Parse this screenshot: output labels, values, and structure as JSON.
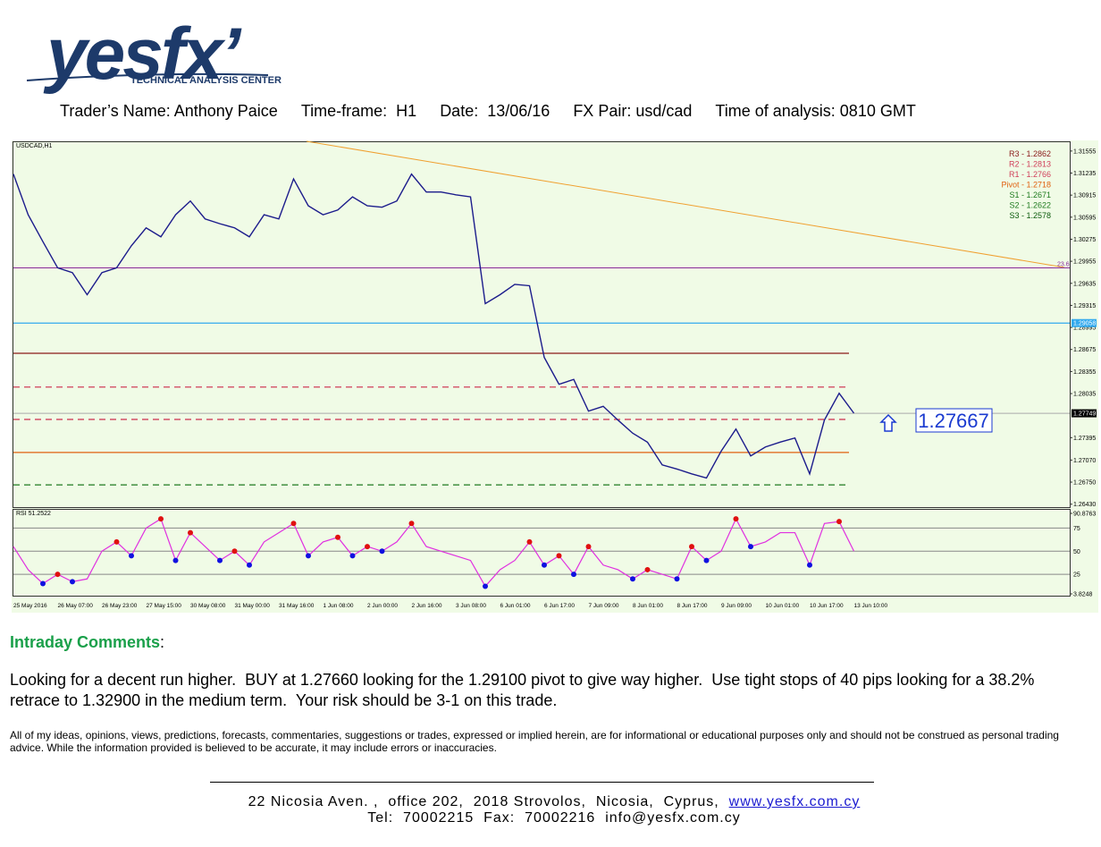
{
  "header": {
    "logo": "yesfx’",
    "tagline": "TECHNICAL ANALYSIS CENTER",
    "fields": [
      [
        "Trader’s Name:",
        "Anthony Paice"
      ],
      [
        "Time-frame:",
        "H1"
      ],
      [
        "Date:",
        "13/06/16"
      ],
      [
        "FX Pair:",
        "usd/cad"
      ],
      [
        "Time of analysis:",
        "0810 GMT"
      ]
    ]
  },
  "chart_data": {
    "type": "line",
    "title": "USDCAD,H1",
    "categories": [
      "25 May 2016",
      null,
      null,
      "26 May 07:00",
      null,
      null,
      "26 May 23:00",
      null,
      null,
      "27 May 15:00",
      null,
      null,
      "30 May 08:00",
      null,
      null,
      "31 May 00:00",
      null,
      null,
      "31 May 16:00",
      null,
      null,
      "1 Jun 08:00",
      null,
      null,
      "2 Jun 00:00",
      null,
      null,
      "2 Jun 16:00",
      null,
      null,
      "3 Jun 08:00",
      null,
      null,
      "6 Jun 01:00",
      null,
      null,
      "6 Jun 17:00",
      null,
      null,
      "7 Jun 09:00",
      null,
      null,
      "8 Jun 01:00",
      null,
      null,
      "8 Jun 17:00",
      null,
      null,
      "9 Jun 09:00",
      null,
      null,
      "10 Jun 01:00",
      null,
      null,
      "10 Jun 17:00",
      null,
      null,
      "13 Jun 10:00"
    ],
    "values": [
      1.3122,
      1.3063,
      1.3024,
      1.2986,
      1.2979,
      1.2947,
      1.2979,
      1.2986,
      1.3018,
      1.3044,
      1.3031,
      1.3063,
      1.3083,
      1.3057,
      1.305,
      1.3044,
      1.3031,
      1.3063,
      1.3057,
      1.3115,
      1.3076,
      1.3063,
      1.307,
      1.3089,
      1.3076,
      1.3074,
      1.3083,
      1.3122,
      1.3096,
      1.3096,
      1.3092,
      1.3089,
      1.2934,
      1.2947,
      1.2962,
      1.296,
      1.2856,
      1.2817,
      1.2824,
      1.2778,
      1.2785,
      1.2765,
      1.2746,
      1.2733,
      1.27,
      1.2694,
      1.2687,
      1.2681,
      1.272,
      1.2752,
      1.2713,
      1.2726,
      1.2733,
      1.2739,
      1.2687,
      1.2765,
      1.2804,
      1.2775
    ],
    "color": "#1c1c8c",
    "ylim": [
      1.264,
      1.3167
    ],
    "yticks": [
      1.31555,
      1.31235,
      1.30915,
      1.30595,
      1.30275,
      1.29955,
      1.29635,
      1.29315,
      1.28995,
      1.28675,
      1.28355,
      1.28035,
      1.27395,
      {
        "value": 1.2707,
        "label": "1.27070"
      },
      {
        "value": 1.2675,
        "label": "1.26750"
      },
      {
        "value": 1.2643,
        "label": "1.26430"
      }
    ],
    "current_price": 1.27749,
    "support_line": {
      "value": 1.29058,
      "color": "#33aaee"
    },
    "fib_line": {
      "label": "23.6",
      "value": 1.2986,
      "color": "#8a2a9a"
    },
    "levels": [
      {
        "label": "R3 - 1.2862",
        "value": 1.2862,
        "color": "#8b1a1a",
        "style": "solid"
      },
      {
        "label": "R2 - 1.2813",
        "value": 1.2813,
        "color": "#d0405a",
        "style": "dashed"
      },
      {
        "label": "R1 - 1.2766",
        "value": 1.2766,
        "color": "#d0405a",
        "style": "dashed"
      },
      {
        "label": "Pivot - 1.2718",
        "value": 1.2718,
        "color": "#e06010",
        "style": "solid"
      },
      {
        "label": "S1 - 1.2671",
        "value": 1.2671,
        "color": "#1e7a1e",
        "style": "dashed"
      },
      {
        "label": "S2 - 1.2622",
        "value": 1.2622,
        "color": "#1e7a1e",
        "style": "dashed"
      },
      {
        "label": "S3 - 1.2578",
        "value": 1.2578,
        "color": "#0b5a0b",
        "style": "dashed"
      }
    ],
    "annotation": 1.27667,
    "rsi": {
      "title": "RSI 51.2522",
      "color": "#e030e0",
      "values": [
        55,
        30,
        15,
        25,
        17,
        20,
        50,
        60,
        45,
        75,
        85,
        40,
        70,
        55,
        40,
        50,
        35,
        60,
        70,
        80,
        45,
        60,
        65,
        45,
        55,
        50,
        60,
        80,
        55,
        50,
        45,
        40,
        12,
        30,
        40,
        60,
        35,
        45,
        25,
        55,
        35,
        30,
        20,
        30,
        25,
        20,
        55,
        40,
        50,
        85,
        55,
        60,
        70,
        70,
        35,
        80,
        82,
        50
      ],
      "ylim": [
        3.8248,
        90.8763
      ],
      "yticks": [
        3.8248,
        25,
        50,
        75,
        90.8763
      ]
    }
  },
  "comments": {
    "heading": "Intraday Comments",
    "punct": ":",
    "body": "Looking for a decent run higher.  BUY at 1.27660 looking for the 1.29100 pivot to give way higher.  Use tight stops of 40 pips looking for a 38.2% retrace to 1.32900 in the medium term.  Your risk should be 3-1 on this trade.",
    "disclaimer": "All of my ideas, opinions, views, predictions, forecasts, commentaries, suggestions or trades, expressed or implied herein, are for informational or educational purposes only and should not be construed as personal trading advice. While the information provided is believed to be accurate, it may include errors or inaccuracies."
  },
  "footer": {
    "address": "22 Nicosia Aven. ,  office 202,  2018 Strovolos,  Nicosia,  Cyprus,",
    "link": "www.yesfx.com.cy",
    "contact": "Tel:  70002215  Fax:  70002216  info@yesfx.com.cy"
  }
}
